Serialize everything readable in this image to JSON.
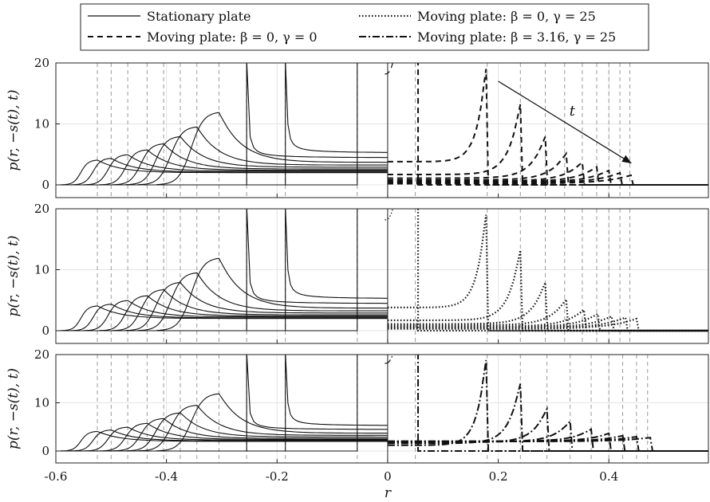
{
  "chart_data": {
    "type": "line",
    "xlabel": "r",
    "ylabel": "p(r, −s(t), t)",
    "xlim": [
      -0.6,
      0.58
    ],
    "ylim": [
      0,
      20
    ],
    "x_ticks": [
      "-0.6",
      "-0.4",
      "-0.2",
      "0",
      "0.2",
      "0.4"
    ],
    "x_tick_values": [
      -0.6,
      -0.4,
      -0.2,
      0,
      0.2,
      0.4
    ],
    "y_ticks": [
      "0",
      "10",
      "20"
    ],
    "y_tick_values": [
      0,
      10,
      20
    ],
    "grid": true,
    "legend_position": "top",
    "legend": [
      {
        "label": "Stationary plate",
        "style": "solid"
      },
      {
        "label": "Moving plate:  β = 0, γ = 25",
        "style": "dotted"
      },
      {
        "label": "Moving plate:  β = 0, γ = 0",
        "style": "dashed"
      },
      {
        "label": "Moving plate:  β = 3.16, γ = 25",
        "style": "dashdot"
      }
    ],
    "annotation": {
      "text": "t",
      "from": [
        0.2,
        17
      ],
      "to": [
        0.44,
        3.6
      ]
    },
    "stationary_series": {
      "name": "Stationary plate",
      "fronts": [
        -0.525,
        -0.5,
        -0.47,
        -0.435,
        -0.405,
        -0.375,
        -0.345,
        -0.305,
        -0.255,
        -0.185,
        -0.055
      ],
      "peaks": [
        4.1,
        4.4,
        5.0,
        5.8,
        6.8,
        8.0,
        9.6,
        12.0,
        17.8,
        20,
        20
      ],
      "tails": [
        2.0,
        2.1,
        2.25,
        2.4,
        2.6,
        2.9,
        3.25,
        3.7,
        4.4,
        5.2,
        6.0
      ]
    },
    "panels": [
      {
        "name": "Moving plate: β = 0, γ = 0",
        "style": "dashed",
        "fronts": [
          0.055,
          0.178,
          0.24,
          0.285,
          0.323,
          0.352,
          0.378,
          0.4,
          0.42,
          0.44
        ],
        "peaks": [
          20,
          20,
          13.8,
          8.2,
          5.3,
          3.8,
          3.0,
          2.4,
          2.0,
          1.6
        ],
        "starts": [
          20,
          3.8,
          1.7,
          1.1,
          0.8,
          0.6,
          0.5,
          0.4,
          0.3,
          0.2
        ],
        "vlines": [
          0.05,
          0.18,
          0.24,
          0.285,
          0.32,
          0.352,
          0.378,
          0.4,
          0.42,
          0.438
        ]
      },
      {
        "name": "Moving plate: β = 0, γ = 25",
        "style": "dotted",
        "fronts": [
          0.055,
          0.178,
          0.24,
          0.285,
          0.323,
          0.355,
          0.38,
          0.405,
          0.43,
          0.45
        ],
        "peaks": [
          20,
          20,
          13.8,
          8.2,
          5.3,
          3.5,
          2.8,
          2.4,
          2.2,
          2.0
        ],
        "starts": [
          20,
          3.8,
          1.7,
          1.1,
          0.9,
          0.7,
          0.6,
          0.5,
          0.4,
          0.3
        ],
        "vlines": [
          0.05,
          0.18,
          0.24,
          0.285,
          0.32,
          0.352,
          0.378,
          0.4,
          0.42,
          0.438
        ]
      },
      {
        "name": "Moving plate: β = 3.16, γ = 25",
        "style": "dashdot",
        "fronts": [
          0.055,
          0.178,
          0.24,
          0.288,
          0.33,
          0.368,
          0.4,
          0.425,
          0.45,
          0.475
        ],
        "peaks": [
          20,
          20,
          14.6,
          9.0,
          6.3,
          4.6,
          3.7,
          3.2,
          3.0,
          2.8
        ],
        "starts": [
          20,
          1.2,
          1.6,
          1.8,
          1.9,
          2.0,
          2.0,
          2.0,
          2.0,
          2.0
        ],
        "vlines": [
          0.05,
          0.18,
          0.24,
          0.288,
          0.33,
          0.368,
          0.4,
          0.425,
          0.45,
          0.47
        ]
      }
    ]
  }
}
